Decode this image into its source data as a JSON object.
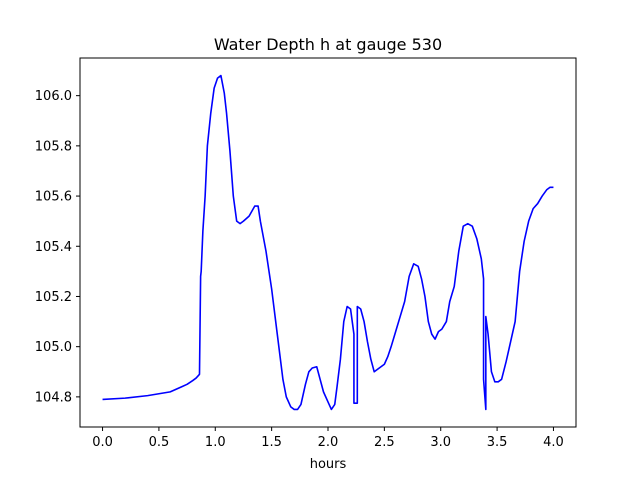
{
  "chart_data": {
    "type": "line",
    "title": "Water Depth h at gauge 530",
    "xlabel": "hours",
    "ylabel": "",
    "xlim": [
      -0.2,
      4.2
    ],
    "ylim": [
      104.68,
      106.15
    ],
    "xticks": [
      0.0,
      0.5,
      1.0,
      1.5,
      2.0,
      2.5,
      3.0,
      3.5,
      4.0
    ],
    "xtick_labels": [
      "0.0",
      "0.5",
      "1.0",
      "1.5",
      "2.0",
      "2.5",
      "3.0",
      "3.5",
      "4.0"
    ],
    "yticks": [
      104.8,
      105.0,
      105.2,
      105.4,
      105.6,
      105.8,
      106.0
    ],
    "ytick_labels": [
      "104.8",
      "105.0",
      "105.2",
      "105.4",
      "105.6",
      "105.8",
      "106.0"
    ],
    "grid": false,
    "series": [
      {
        "color": "#0000ff",
        "x": [
          0.0,
          0.2,
          0.4,
          0.6,
          0.65,
          0.7,
          0.75,
          0.8,
          0.83,
          0.86,
          0.87,
          0.875,
          0.89,
          0.91,
          0.93,
          0.96,
          0.99,
          1.02,
          1.05,
          1.08,
          1.1,
          1.13,
          1.16,
          1.19,
          1.22,
          1.25,
          1.3,
          1.35,
          1.38,
          1.4,
          1.45,
          1.5,
          1.55,
          1.6,
          1.63,
          1.67,
          1.7,
          1.73,
          1.76,
          1.8,
          1.83,
          1.86,
          1.9,
          1.93,
          1.96,
          2.0,
          2.03,
          2.06,
          2.08,
          2.11,
          2.14,
          2.17,
          2.2,
          2.23,
          2.23,
          2.26,
          2.26,
          2.29,
          2.32,
          2.35,
          2.38,
          2.41,
          2.44,
          2.47,
          2.5,
          2.53,
          2.56,
          2.6,
          2.64,
          2.68,
          2.72,
          2.76,
          2.8,
          2.83,
          2.86,
          2.89,
          2.92,
          2.95,
          2.98,
          3.01,
          3.05,
          3.08,
          3.12,
          3.16,
          3.2,
          3.24,
          3.28,
          3.32,
          3.36,
          3.38,
          3.38,
          3.4,
          3.4,
          3.42,
          3.45,
          3.48,
          3.51,
          3.54,
          3.58,
          3.62,
          3.66,
          3.7,
          3.74,
          3.78,
          3.82,
          3.86,
          3.9,
          3.94,
          3.97,
          4.0
        ],
        "y": [
          104.79,
          104.795,
          104.805,
          104.82,
          104.83,
          104.84,
          104.85,
          104.865,
          104.875,
          104.89,
          105.28,
          105.3,
          105.46,
          105.6,
          105.8,
          105.93,
          106.03,
          106.07,
          106.08,
          106.01,
          105.93,
          105.78,
          105.6,
          105.5,
          105.49,
          105.5,
          105.52,
          105.56,
          105.56,
          105.5,
          105.38,
          105.23,
          105.05,
          104.87,
          104.8,
          104.76,
          104.75,
          104.75,
          104.77,
          104.85,
          104.9,
          104.915,
          104.92,
          104.87,
          104.82,
          104.78,
          104.75,
          104.77,
          104.84,
          104.95,
          105.1,
          105.16,
          105.15,
          105.05,
          104.775,
          104.775,
          105.16,
          105.15,
          105.1,
          105.02,
          104.95,
          104.9,
          104.91,
          104.92,
          104.93,
          104.96,
          105.0,
          105.06,
          105.12,
          105.18,
          105.28,
          105.33,
          105.32,
          105.27,
          105.2,
          105.1,
          105.05,
          105.03,
          105.06,
          105.07,
          105.1,
          105.18,
          105.24,
          105.38,
          105.48,
          105.49,
          105.48,
          105.43,
          105.35,
          105.27,
          104.87,
          104.75,
          105.12,
          105.05,
          104.9,
          104.86,
          104.86,
          104.87,
          104.94,
          105.02,
          105.1,
          105.3,
          105.42,
          105.5,
          105.55,
          105.57,
          105.6,
          105.625,
          105.635,
          105.635
        ]
      }
    ]
  }
}
